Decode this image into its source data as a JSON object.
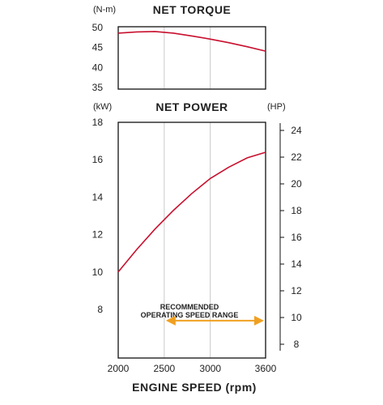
{
  "chart_data": [
    {
      "type": "line",
      "title": "NET TORQUE",
      "ylabel": "(N-m)",
      "xlim": [
        2000,
        3600
      ],
      "ylim": [
        35,
        50
      ],
      "yticks": [
        35,
        40,
        45,
        50
      ],
      "grid": "vertical",
      "series": [
        {
          "color": "#c8102e",
          "x": [
            2000,
            2200,
            2400,
            2600,
            2800,
            3000,
            3200,
            3400,
            3600
          ],
          "y": [
            48.6,
            48.9,
            49.0,
            48.6,
            47.9,
            47.1,
            46.2,
            45.2,
            44.1
          ]
        }
      ]
    },
    {
      "type": "line",
      "title": "NET POWER",
      "ylabel": "(kW)",
      "ylabel_right": "(HP)",
      "xlabel": "ENGINE SPEED (rpm)",
      "xlim": [
        2000,
        3600
      ],
      "xticks": [
        2000,
        2500,
        3000,
        3600
      ],
      "ylim": [
        6.5,
        18
      ],
      "yticks": [
        8,
        10,
        12,
        14,
        16,
        18
      ],
      "ylim_right": [
        8,
        24
      ],
      "yticks_right": [
        8,
        10,
        12,
        14,
        16,
        18,
        20,
        22,
        24
      ],
      "grid": "vertical",
      "series": [
        {
          "color": "#c8102e",
          "x": [
            2000,
            2200,
            2400,
            2600,
            2800,
            3000,
            3200,
            3400,
            3600
          ],
          "y": [
            10.0,
            11.2,
            12.3,
            13.3,
            14.2,
            15.0,
            15.6,
            16.1,
            16.4
          ]
        }
      ],
      "annotation": {
        "lines": [
          "RECOMMENDED",
          "OPERATING SPEED RANGE"
        ],
        "range": [
          2500,
          3600
        ],
        "y": 7.4,
        "color": "#f0a020"
      }
    }
  ]
}
